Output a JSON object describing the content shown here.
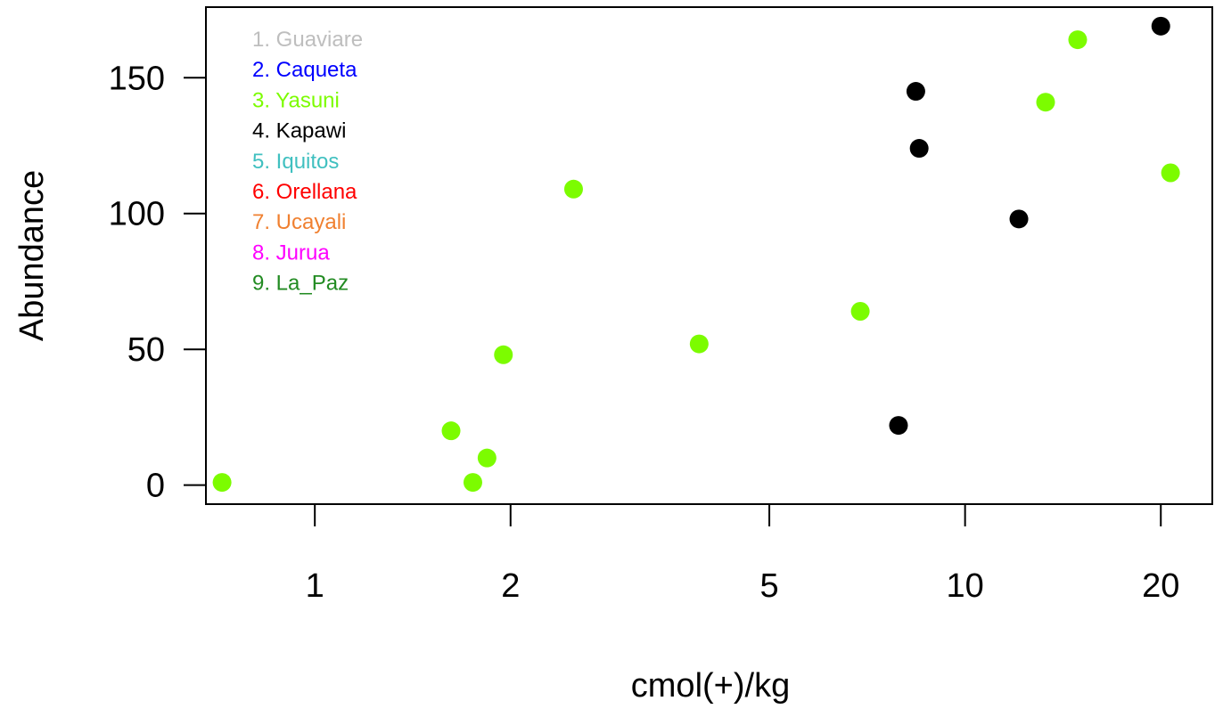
{
  "chart_data": {
    "type": "scatter",
    "title": "",
    "xlabel": "cmol(+)/kg",
    "ylabel": "Abundance",
    "x_scale": "log",
    "xlim": [
      0.68,
      24
    ],
    "ylim": [
      -7,
      176
    ],
    "x_ticks": [
      1,
      2,
      5,
      10,
      20
    ],
    "y_ticks": [
      0,
      50,
      100,
      150
    ],
    "legend": {
      "position": "top-left",
      "entries": [
        {
          "label": "1. Guaviare",
          "color": "#BEBEBE"
        },
        {
          "label": "2. Caqueta",
          "color": "#0000FF"
        },
        {
          "label": "3. Yasuni",
          "color": "#7CFC00"
        },
        {
          "label": "4. Kapawi",
          "color": "#000000"
        },
        {
          "label": "5. Iquitos",
          "color": "#40C0C0"
        },
        {
          "label": "6. Orellana",
          "color": "#FF0000"
        },
        {
          "label": "7. Ucayali",
          "color": "#F08030"
        },
        {
          "label": "8. Jurua",
          "color": "#FF00FF"
        },
        {
          "label": "9. La_Paz",
          "color": "#228B22"
        }
      ]
    },
    "series": [
      {
        "name": "3. Yasuni",
        "color": "#7CFC00",
        "points": [
          {
            "x": 0.72,
            "y": 1
          },
          {
            "x": 1.62,
            "y": 20
          },
          {
            "x": 1.84,
            "y": 10
          },
          {
            "x": 1.75,
            "y": 1
          },
          {
            "x": 1.95,
            "y": 48
          },
          {
            "x": 2.5,
            "y": 109
          },
          {
            "x": 3.9,
            "y": 52
          },
          {
            "x": 6.9,
            "y": 64
          },
          {
            "x": 13.3,
            "y": 141
          },
          {
            "x": 14.9,
            "y": 164
          },
          {
            "x": 20.7,
            "y": 115
          }
        ]
      },
      {
        "name": "4. Kapawi",
        "color": "#000000",
        "points": [
          {
            "x": 7.9,
            "y": 22
          },
          {
            "x": 8.4,
            "y": 145
          },
          {
            "x": 8.5,
            "y": 124
          },
          {
            "x": 12.1,
            "y": 98
          },
          {
            "x": 20.0,
            "y": 169
          }
        ]
      }
    ]
  }
}
